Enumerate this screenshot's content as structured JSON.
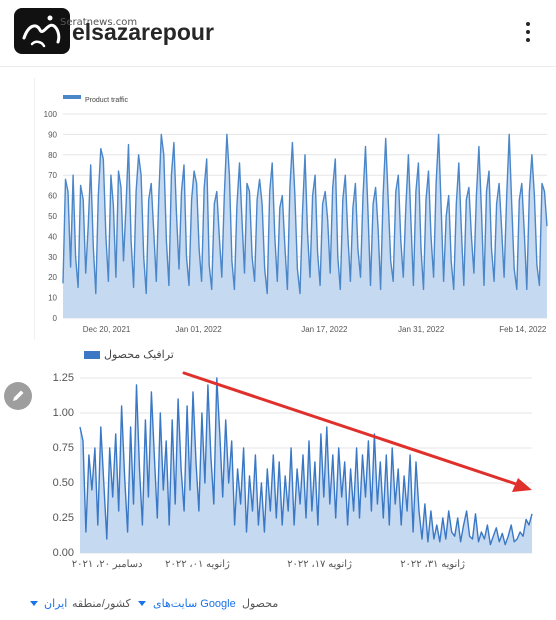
{
  "header": {
    "username": "elsazarepour",
    "watermark": "Seratnews.com",
    "logo_icon": "seraat-logo-icon",
    "more_icon": "vertical-dots-icon"
  },
  "chart_data": [
    {
      "type": "area",
      "title": "",
      "legend": {
        "label": "Product traffic",
        "placement": "top-left"
      },
      "series": [
        {
          "name": "Product traffic",
          "color": "#4a86c8",
          "fill": "#c5d9f1",
          "values": [
            17,
            68,
            62,
            25,
            70,
            30,
            15,
            65,
            58,
            22,
            45,
            75,
            35,
            12,
            60,
            83,
            78,
            40,
            18,
            70,
            55,
            20,
            72,
            64,
            28,
            55,
            85,
            38,
            15,
            62,
            80,
            70,
            30,
            12,
            58,
            66,
            42,
            18,
            60,
            90,
            80,
            38,
            16,
            70,
            86,
            52,
            24,
            62,
            75,
            30,
            16,
            58,
            72,
            66,
            34,
            18,
            64,
            78,
            26,
            14,
            56,
            62,
            40,
            20,
            60,
            90,
            70,
            28,
            14,
            55,
            76,
            48,
            22,
            66,
            62,
            30,
            18,
            58,
            68,
            56,
            24,
            12,
            62,
            76,
            40,
            18,
            54,
            60,
            36,
            14,
            64,
            86,
            60,
            24,
            12,
            52,
            80,
            42,
            20,
            60,
            70,
            32,
            16,
            56,
            62,
            48,
            22,
            64,
            78,
            30,
            14,
            58,
            70,
            40,
            18,
            54,
            66,
            34,
            20,
            60,
            84,
            52,
            16,
            56,
            64,
            44,
            14,
            60,
            88,
            58,
            28,
            18,
            62,
            70,
            38,
            20,
            54,
            80,
            48,
            16,
            62,
            76,
            34,
            14,
            58,
            72,
            40,
            20,
            66,
            90,
            55,
            18,
            50,
            60,
            28,
            14,
            56,
            76,
            44,
            16,
            58,
            64,
            40,
            22,
            60,
            84,
            52,
            16,
            62,
            72,
            34,
            18,
            56,
            66,
            44,
            20,
            60,
            90,
            56,
            24,
            14,
            58,
            66,
            42,
            14,
            62,
            80,
            60,
            26,
            16,
            66,
            62,
            45
          ]
        }
      ],
      "y_ticks": [
        "100",
        "90",
        "80",
        "70",
        "60",
        "50",
        "40",
        "30",
        "20",
        "10",
        "0"
      ],
      "ylim": [
        0,
        100
      ],
      "x_ticks": [
        "Dec 20, 2021",
        "Jan 01, 2022",
        "Jan 17, 2022",
        "Jan 31, 2022",
        "Feb 14, 2022"
      ],
      "grid": true
    },
    {
      "type": "area",
      "title": "",
      "legend": {
        "label": "ترافیک محصول",
        "placement": "top-left"
      },
      "series": [
        {
          "name": "ترافیک محصول",
          "color": "#3a78c5",
          "fill": "#c5d9f1",
          "values": [
            0.9,
            0.8,
            0.15,
            0.7,
            0.45,
            0.75,
            0.2,
            0.9,
            0.5,
            0.1,
            0.75,
            0.4,
            0.85,
            0.3,
            1.05,
            0.55,
            0.15,
            0.9,
            0.35,
            1.2,
            0.6,
            0.2,
            0.95,
            0.4,
            1.15,
            0.7,
            0.25,
            1.0,
            0.45,
            0.8,
            0.2,
            0.95,
            0.35,
            1.1,
            0.6,
            0.3,
            1.05,
            0.45,
            1.15,
            0.65,
            0.3,
            1.0,
            0.5,
            1.2,
            0.7,
            0.35,
            1.25,
            0.85,
            0.4,
            0.95,
            0.5,
            0.8,
            0.2,
            0.6,
            0.35,
            0.75,
            0.15,
            0.55,
            0.3,
            0.7,
            0.2,
            0.5,
            0.15,
            0.6,
            0.3,
            0.7,
            0.25,
            0.65,
            0.2,
            0.55,
            0.3,
            0.75,
            0.2,
            0.6,
            0.35,
            0.7,
            0.25,
            0.8,
            0.3,
            0.65,
            0.2,
            0.85,
            0.4,
            0.9,
            0.35,
            0.7,
            0.25,
            0.75,
            0.4,
            0.65,
            0.2,
            0.6,
            0.3,
            0.75,
            0.25,
            0.7,
            0.4,
            0.8,
            0.3,
            0.85,
            0.35,
            0.65,
            0.25,
            0.7,
            0.2,
            0.75,
            0.35,
            0.6,
            0.2,
            0.55,
            0.3,
            0.7,
            0.15,
            0.65,
            0.3,
            0.1,
            0.35,
            0.08,
            0.3,
            0.1,
            0.2,
            0.08,
            0.25,
            0.1,
            0.3,
            0.15,
            0.12,
            0.25,
            0.08,
            0.2,
            0.3,
            0.12,
            0.1,
            0.28,
            0.08,
            0.15,
            0.1,
            0.2,
            0.06,
            0.12,
            0.18,
            0.08,
            0.14,
            0.06,
            0.12,
            0.2,
            0.08,
            0.1,
            0.15,
            0.12,
            0.24,
            0.2,
            0.28
          ]
        }
      ],
      "y_ticks": [
        "1.25",
        "1.00",
        "0.75",
        "0.50",
        "0.25",
        "0.00"
      ],
      "ylim": [
        0,
        1.3
      ],
      "x_ticks": [
        "دسامبر ۲۰، ۲۰۲۱",
        "ژانویه ۰۱، ۲۰۲۲",
        "ژانویه ۱۷، ۲۰۲۲",
        "ژانویه ۳۱، ۲۰۲۲"
      ],
      "grid": true,
      "annotation": {
        "type": "trend-arrow",
        "direction": "down-right",
        "color": "#e0302b"
      }
    }
  ],
  "edit_icon": "pencil-icon",
  "filters": {
    "product_label": "محصول",
    "surface_value": "سایت‌های Google",
    "country_label": "کشور/منطقه",
    "country_value": "ایران"
  }
}
